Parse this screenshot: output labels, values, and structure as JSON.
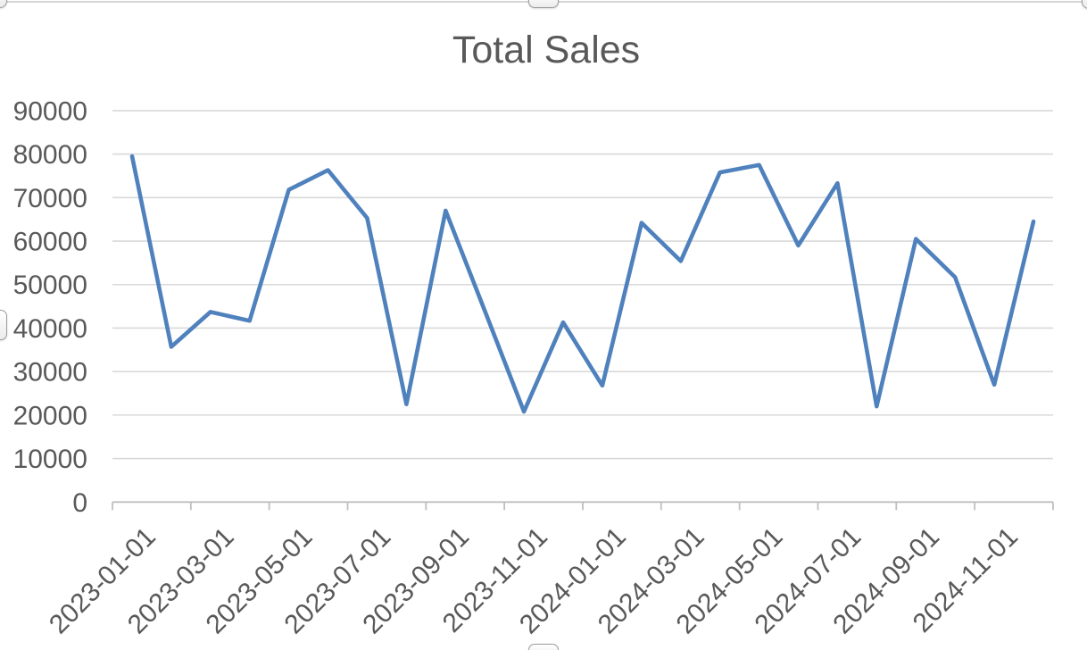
{
  "chart_data": {
    "type": "line",
    "title": "Total Sales",
    "x": [
      "2023-01-01",
      "2023-02-01",
      "2023-03-01",
      "2023-04-01",
      "2023-05-01",
      "2023-06-01",
      "2023-07-01",
      "2023-08-01",
      "2023-09-01",
      "2023-10-01",
      "2023-11-01",
      "2023-12-01",
      "2024-01-01",
      "2024-02-01",
      "2024-03-01",
      "2024-04-01",
      "2024-05-01",
      "2024-06-01",
      "2024-07-01",
      "2024-08-01",
      "2024-09-01",
      "2024-10-01",
      "2024-11-01",
      "2024-12-01"
    ],
    "values": [
      79500,
      35700,
      43700,
      41700,
      71800,
      76300,
      65300,
      22500,
      67000,
      44000,
      20800,
      41300,
      26800,
      64200,
      55400,
      75800,
      77500,
      59000,
      73300,
      22000,
      60500,
      51700,
      27000,
      64500
    ],
    "x_tick_labels": [
      "2023-01-01",
      "2023-03-01",
      "2023-05-01",
      "2023-07-01",
      "2023-09-01",
      "2023-11-01",
      "2024-01-01",
      "2024-03-01",
      "2024-05-01",
      "2024-07-01",
      "2024-09-01",
      "2024-11-01"
    ],
    "y_ticks": [
      90000,
      80000,
      70000,
      60000,
      50000,
      40000,
      30000,
      20000,
      10000,
      0
    ],
    "ylim": [
      0,
      90000
    ],
    "xlabel": "",
    "ylabel": "",
    "grid": true,
    "legend": "none",
    "colors": {
      "line": "#4F81BD",
      "gridline": "#D9D9D9",
      "axis": "#BFBFBF",
      "text": "#595959"
    }
  },
  "selection": {
    "selected": true,
    "handles": [
      "top-left",
      "top-center",
      "top-right",
      "left-middle",
      "bottom-center"
    ]
  }
}
